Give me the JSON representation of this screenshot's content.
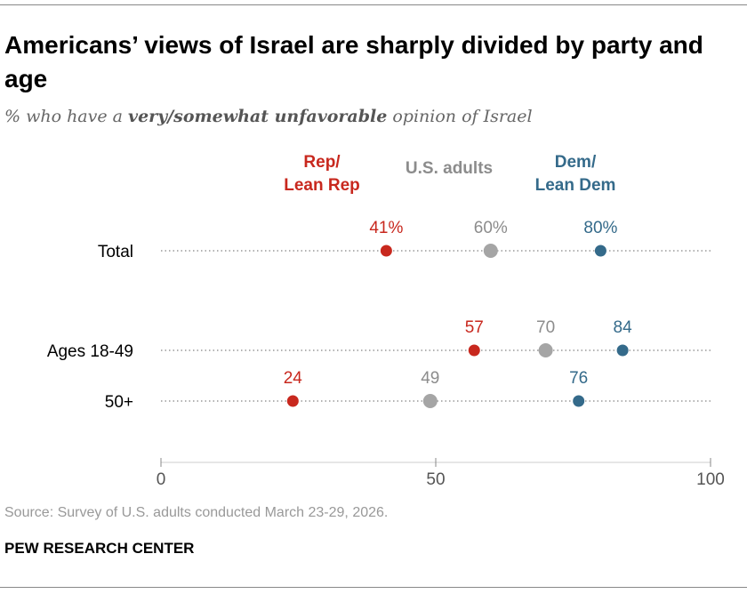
{
  "title": "Americans’ views of Israel are sharply divided by party and age",
  "subtitle": {
    "pre": "% who have a ",
    "bold": "very/somewhat unfavorable",
    "post": " opinion of Israel"
  },
  "source": "Source: Survey of U.S. adults conducted March 23-29, 2026.",
  "brand": "PEW RESEARCH CENTER",
  "chart_data": {
    "type": "dot",
    "xlim": [
      0,
      100
    ],
    "xticks": [
      "0",
      "50",
      "100"
    ],
    "categories": [
      "Total",
      "Ages 18-49",
      "50+"
    ],
    "series": [
      {
        "name": "Rep/\nLean Rep",
        "color": "#c8281e",
        "values": [
          41,
          57,
          24
        ],
        "labels": [
          "41%",
          "57",
          "24"
        ]
      },
      {
        "name": "U.S. adults",
        "color": "#a5a5a5",
        "label_color": "#8c8c8c",
        "values": [
          60,
          70,
          49
        ],
        "labels": [
          "60%",
          "70",
          "49"
        ]
      },
      {
        "name": "Dem/\nLean Dem",
        "color": "#346a8a",
        "values": [
          80,
          84,
          76
        ],
        "labels": [
          "80%",
          "84",
          "76"
        ]
      }
    ]
  }
}
